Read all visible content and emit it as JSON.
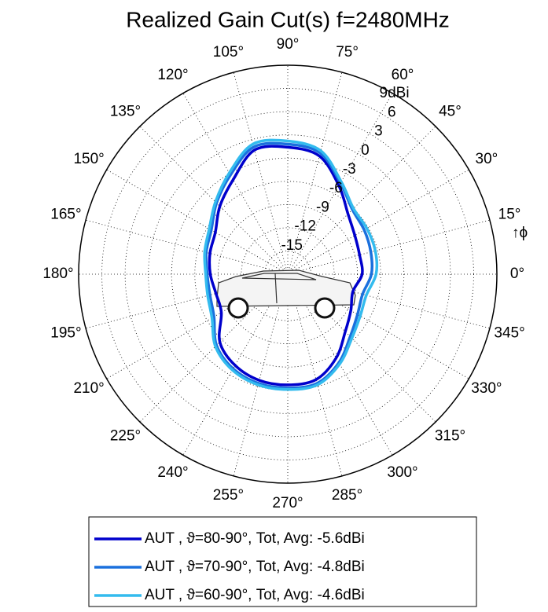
{
  "chart_data": {
    "type": "polar",
    "title": "Realized Gain Cut(s) f=2480MHz",
    "annotation": "↑ϕ",
    "x": [
      0,
      15,
      30,
      45,
      60,
      75,
      90,
      105,
      120,
      135,
      150,
      165,
      180,
      195,
      210,
      225,
      240,
      255,
      270,
      285,
      300,
      315,
      330,
      345
    ],
    "xticks": [
      {
        "value": 0,
        "label": "0°"
      },
      {
        "value": 15,
        "label": "15°"
      },
      {
        "value": 30,
        "label": "30°"
      },
      {
        "value": 45,
        "label": "45°"
      },
      {
        "value": 60,
        "label": "60°"
      },
      {
        "value": 75,
        "label": "75°"
      },
      {
        "value": 90,
        "label": "90°"
      },
      {
        "value": 105,
        "label": "105°"
      },
      {
        "value": 120,
        "label": "120°"
      },
      {
        "value": 135,
        "label": "135°"
      },
      {
        "value": 150,
        "label": "150°"
      },
      {
        "value": 165,
        "label": "165°"
      },
      {
        "value": 180,
        "label": "180°"
      },
      {
        "value": 195,
        "label": "195°"
      },
      {
        "value": 210,
        "label": "210°"
      },
      {
        "value": 225,
        "label": "225°"
      },
      {
        "value": 240,
        "label": "240°"
      },
      {
        "value": 255,
        "label": "255°"
      },
      {
        "value": 270,
        "label": "270°"
      },
      {
        "value": 285,
        "label": "285°"
      },
      {
        "value": 300,
        "label": "300°"
      },
      {
        "value": 315,
        "label": "315°"
      },
      {
        "value": 330,
        "label": "330°"
      },
      {
        "value": 345,
        "label": "345°"
      }
    ],
    "ylim": [
      -18,
      9
    ],
    "yticks": [
      -15,
      -12,
      -9,
      -6,
      -3,
      0,
      3,
      6,
      {
        "value": 9,
        "label": "9dBi"
      }
    ],
    "grid": true,
    "series": [
      {
        "name": "AUT , ϑ=80-90°, Tot, Avg: -5.6dBi",
        "color": "#0000cc",
        "values": [
          -8.4,
          -8.4,
          -8.0,
          -7.0,
          -4.8,
          -2.2,
          -1.6,
          -1.4,
          -3.9,
          -5.6,
          -7.2,
          -7.6,
          -8.0,
          -8.4,
          -8.1,
          -5.6,
          -4.4,
          -3.8,
          -3.7,
          -3.9,
          -5.5,
          -7.5,
          -8.6,
          -9.3
        ]
      },
      {
        "name": "AUT , ϑ=70-90°, Tot, Avg: -4.8dBi",
        "color": "#1a70dd",
        "values": [
          -7.2,
          -6.9,
          -6.6,
          -6.2,
          -4.4,
          -1.8,
          -1.2,
          -1.0,
          -3.2,
          -5.0,
          -6.6,
          -7.1,
          -7.6,
          -7.6,
          -7.0,
          -5.0,
          -3.9,
          -3.4,
          -3.3,
          -3.4,
          -4.8,
          -6.6,
          -7.6,
          -8.0
        ]
      },
      {
        "name": "AUT , ϑ=60-90°, Tot, Avg: -4.6dBi",
        "color": "#33bbee",
        "values": [
          -6.6,
          -6.3,
          -6.2,
          -6.0,
          -4.2,
          -1.5,
          -0.8,
          -0.6,
          -2.9,
          -4.8,
          -6.3,
          -6.9,
          -7.4,
          -7.3,
          -6.7,
          -4.8,
          -3.7,
          -3.2,
          -3.1,
          -3.2,
          -4.6,
          -6.3,
          -7.2,
          -7.5
        ]
      }
    ]
  }
}
